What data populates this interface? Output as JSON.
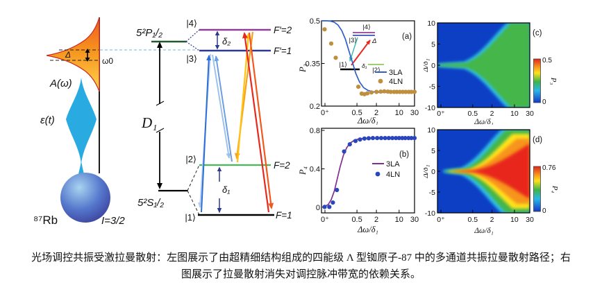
{
  "caption": {
    "line1": "光场调控共振受激拉曼散射：左图展示了由超精细结构组成的四能级 Λ 型铷原子-87 中的多通道共振拉曼散射路径；右",
    "line2": "图展示了拉曼散射消失对调控脉冲带宽的依赖关系。"
  },
  "diagram": {
    "spectrum_label": "A(ω)",
    "pulse_label": "ε(t)",
    "detuning_label": "Δ",
    "carrier_label": "ω0",
    "p_state": "5²P₁/₂",
    "s_state": "5²S₁/₂",
    "d1": "D₁",
    "delta2": "δ₂",
    "delta1": "δ₁",
    "ket4": "|4⟩",
    "ket3": "|3⟩",
    "ket2": "|2⟩",
    "ket1": "|1⟩",
    "fp2": "F′=2",
    "fp1": "F′=1",
    "f2": "F=2",
    "f1": "F=1",
    "atom": "⁸⁷Rb",
    "spin": "I=3/2"
  },
  "colors": {
    "heat_blue": "#0d3fc4",
    "heat_green": "#45b649",
    "heat_red": "#e8251d",
    "pulse_blue": "#29abe2",
    "spectrum_orange": "#f7941d"
  },
  "chart_data": [
    {
      "id": "a",
      "type": "line+scatter",
      "panel_label": "(a)",
      "xlabel": "Δω/δ₁",
      "ylabel": "P₃",
      "x_scale": "log",
      "xlim_hint": [
        0.04,
        30
      ],
      "ylim": [
        0.2,
        0.5
      ],
      "x_ticks": [
        "0⁺",
        "0.5",
        "2",
        "10",
        "30"
      ],
      "y_ticks": [
        "0.2",
        "0.35",
        "0.5"
      ],
      "legend_position": "right-middle",
      "series": [
        {
          "name": "3LA",
          "style": "line",
          "color": "#2f5fc8",
          "x": [
            0.04,
            0.055,
            0.075,
            0.1,
            0.13,
            0.17,
            0.22,
            0.28,
            0.36,
            0.46,
            0.6,
            0.8,
            1.1,
            1.6,
            2.5,
            4,
            7,
            13,
            30
          ],
          "y": [
            0.5,
            0.5,
            0.499,
            0.495,
            0.485,
            0.465,
            0.435,
            0.395,
            0.355,
            0.315,
            0.285,
            0.265,
            0.255,
            0.25,
            0.248,
            0.248,
            0.249,
            0.25,
            0.25
          ]
        },
        {
          "name": "4LN",
          "style": "scatter",
          "color": "#c08f3e",
          "x": [
            0.05,
            0.08,
            0.11,
            0.55,
            0.7,
            0.85,
            1.05,
            1.4,
            2,
            2.7,
            3.5,
            4.5,
            5.5,
            7,
            8.5,
            10.5,
            13,
            16,
            20,
            24,
            30
          ],
          "y": [
            0.47,
            0.42,
            0.37,
            0.268,
            0.244,
            0.242,
            0.245,
            0.248,
            0.25,
            0.251,
            0.252,
            0.251,
            0.25,
            0.25,
            0.25,
            0.25,
            0.25,
            0.25,
            0.25,
            0.25,
            0.25
          ]
        }
      ],
      "inset_labels": {
        "ket4": "|4⟩",
        "ket3": "|3⟩",
        "ket2": "|2⟩",
        "ket1": "|1⟩",
        "delta1": "δ₁",
        "detuning": "Δ"
      }
    },
    {
      "id": "b",
      "type": "line+scatter",
      "panel_label": "(b)",
      "xlabel": "Δω/δ₁",
      "ylabel": "P₄",
      "x_scale": "log",
      "xlim_hint": [
        0.04,
        30
      ],
      "ylim": [
        0,
        0.8
      ],
      "x_ticks": [
        "0⁺",
        "0.5",
        "2",
        "10",
        "30"
      ],
      "y_ticks": [
        "0",
        "0.4",
        "0.8"
      ],
      "legend_position": "right-middle",
      "series": [
        {
          "name": "3LA",
          "style": "line",
          "color": "#7e2f94",
          "x": [
            0.04,
            0.05,
            0.065,
            0.08,
            0.1,
            0.12,
            0.15,
            0.19,
            0.24,
            0.3,
            0.4,
            0.55,
            0.8,
            1.2,
            2,
            4,
            8,
            16,
            30
          ],
          "y": [
            0.0,
            0.008,
            0.03,
            0.08,
            0.17,
            0.28,
            0.42,
            0.54,
            0.62,
            0.665,
            0.695,
            0.71,
            0.717,
            0.72,
            0.72,
            0.72,
            0.72,
            0.72,
            0.72
          ]
        },
        {
          "name": "4LN",
          "style": "scatter",
          "color": "#2b46bb",
          "x": [
            0.05,
            0.07,
            0.09,
            0.12,
            0.2,
            0.3,
            0.45,
            0.62,
            0.85,
            1.15,
            1.55,
            2.1,
            2.8,
            3.7,
            4.8,
            6.2,
            8,
            10,
            12.5,
            15.5,
            19.5,
            24,
            30
          ],
          "y": [
            0.004,
            0.004,
            0.05,
            0.18,
            0.58,
            0.655,
            0.69,
            0.705,
            0.715,
            0.718,
            0.72,
            0.72,
            0.72,
            0.72,
            0.72,
            0.72,
            0.72,
            0.72,
            0.72,
            0.72,
            0.72,
            0.72,
            0.72
          ]
        }
      ]
    },
    {
      "id": "c",
      "type": "heatmap",
      "panel_label": "(c)",
      "xlabel": "Δω/δ₁",
      "ylabel": "Δ/δ₁",
      "x_scale": "log",
      "ylim": [
        -10,
        10
      ],
      "x_ticks": [
        "0⁺",
        "0.5",
        "2",
        "10",
        "30"
      ],
      "y_ticks": [
        "10",
        "5",
        "0",
        "-5",
        "-10"
      ],
      "colorbar": {
        "label": "P₃",
        "min": 0,
        "max": 0.5,
        "tick_labels": [
          "0.5",
          "0"
        ]
      },
      "description": "P₃≈0.25 (green) inside a horn-shaped region opening toward large Δω plus a narrow ridge along Δ=0; P₃≈0 (blue) elsewhere; cyan transition band at the boundary",
      "sample_grid": {
        "x": [
          0.2,
          0.5,
          2,
          10,
          30
        ],
        "delta": [
          10,
          5,
          0,
          -5,
          -10
        ],
        "values": [
          [
            0,
            0,
            0,
            0.1,
            0.25
          ],
          [
            0,
            0,
            0,
            0.22,
            0.25
          ],
          [
            0.3,
            0.28,
            0.26,
            0.25,
            0.25
          ],
          [
            0,
            0,
            0,
            0.22,
            0.25
          ],
          [
            0,
            0,
            0,
            0.1,
            0.25
          ]
        ]
      }
    },
    {
      "id": "d",
      "type": "heatmap",
      "panel_label": "(d)",
      "xlabel": "Δω/δ₁",
      "ylabel": "Δ/δ₁",
      "x_scale": "log",
      "ylim": [
        -10,
        10
      ],
      "x_ticks": [
        "0⁺",
        "0.5",
        "2",
        "10",
        "30"
      ],
      "y_ticks": [
        "10",
        "5",
        "0",
        "-5",
        "-10"
      ],
      "colorbar": {
        "label": "P₄",
        "min": 0,
        "max": 0.76,
        "tick_labels": [
          "0.76",
          "0"
        ]
      },
      "description": "P₄≈0.76 (red) inside a horn-shaped region opening toward large Δω with yellow/green/cyan transition bands and a thin red ridge along Δ=0; P₄≈0 (blue) elsewhere",
      "sample_grid": {
        "x": [
          0.2,
          0.5,
          2,
          10,
          30
        ],
        "delta": [
          10,
          5,
          0,
          -5,
          -10
        ],
        "values": [
          [
            0,
            0,
            0,
            0.15,
            0.55
          ],
          [
            0,
            0,
            0.05,
            0.6,
            0.76
          ],
          [
            0.72,
            0.75,
            0.76,
            0.76,
            0.76
          ],
          [
            0,
            0,
            0.05,
            0.6,
            0.76
          ],
          [
            0,
            0,
            0,
            0.15,
            0.55
          ]
        ]
      }
    }
  ]
}
